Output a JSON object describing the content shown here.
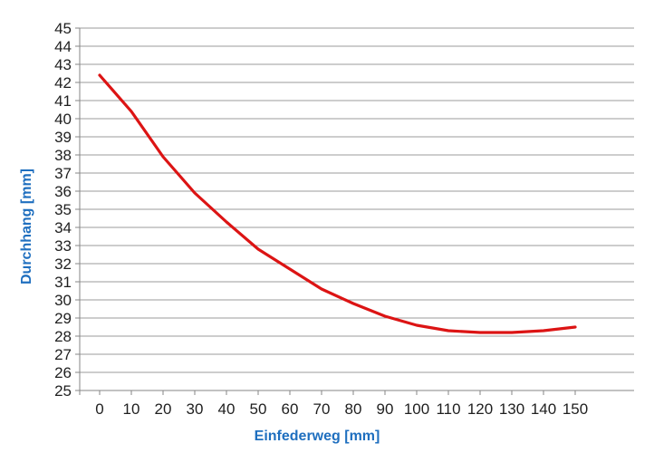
{
  "chart_data": {
    "type": "line",
    "title": "",
    "xlabel": "Einfederweg [mm]",
    "ylabel": "Durchhang [mm]",
    "x": [
      0,
      10,
      20,
      30,
      40,
      50,
      60,
      70,
      80,
      90,
      100,
      110,
      120,
      130,
      140,
      150
    ],
    "series": [
      {
        "name": "Durchhang",
        "values": [
          42.4,
          40.4,
          37.9,
          35.9,
          34.3,
          32.8,
          31.7,
          30.6,
          29.8,
          29.1,
          28.6,
          28.3,
          28.2,
          28.2,
          28.3,
          28.5
        ]
      }
    ],
    "xlim": [
      0,
      150
    ],
    "ylim": [
      25,
      45
    ],
    "x_ticks": [
      0,
      10,
      20,
      30,
      40,
      50,
      60,
      70,
      80,
      90,
      100,
      110,
      120,
      130,
      140,
      150
    ],
    "y_ticks": [
      25,
      26,
      27,
      28,
      29,
      30,
      31,
      32,
      33,
      34,
      35,
      36,
      37,
      38,
      39,
      40,
      41,
      42,
      43,
      44,
      45
    ],
    "x_tick_step": 10,
    "y_tick_step": 1,
    "grid": "horizontal-major",
    "legend": "none"
  },
  "colors": {
    "series_line": "#dc1414",
    "axis_title_blue": "#1f6fbf",
    "tick_label": "#1f1f1f",
    "gridline": "#9b9b9b",
    "axis_line": "#868686",
    "background": "#ffffff"
  }
}
